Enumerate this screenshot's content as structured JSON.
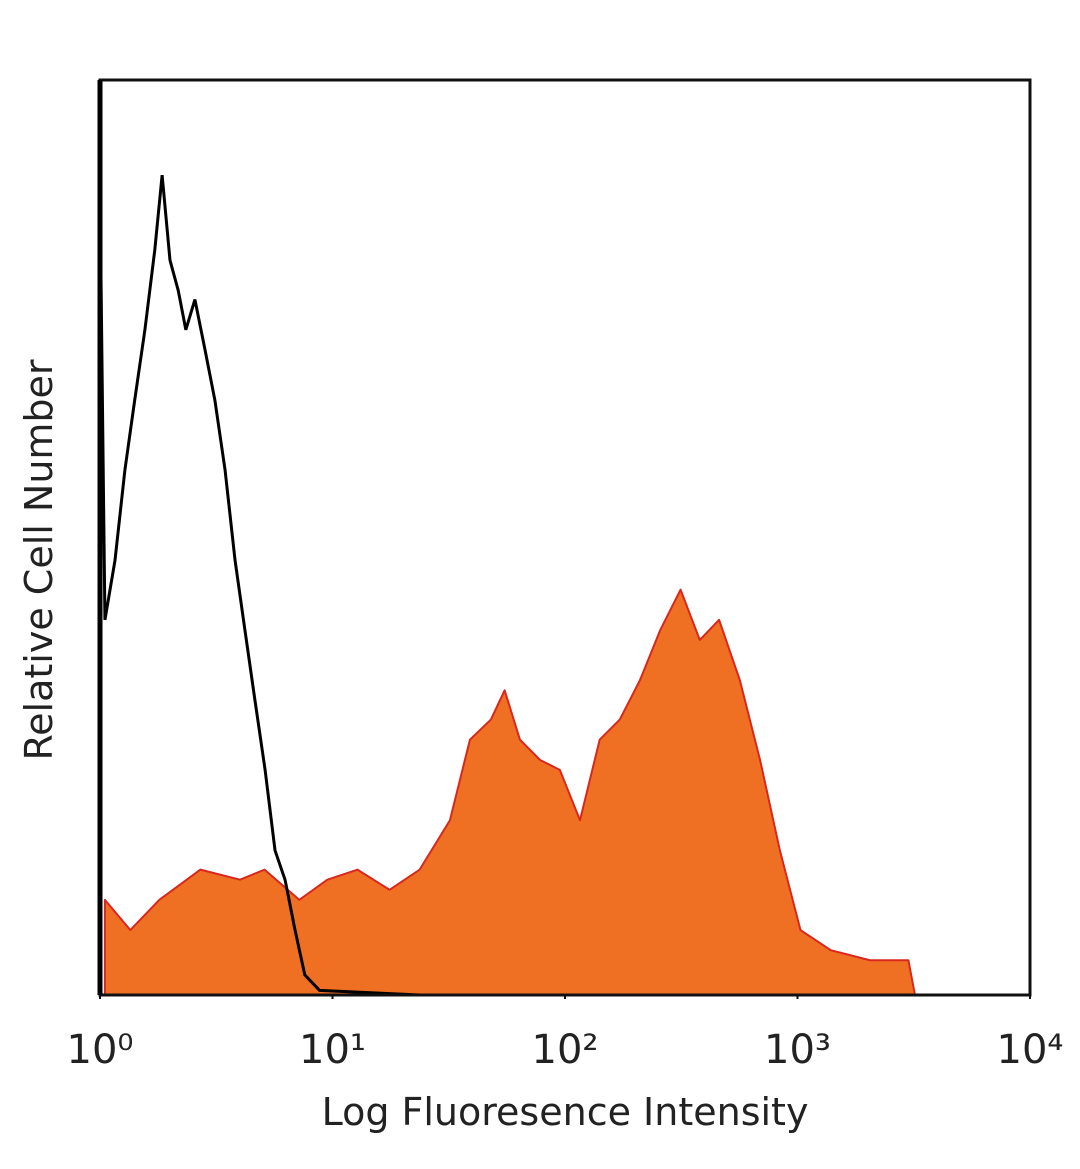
{
  "chart_data": {
    "type": "histogram-overlay",
    "xlabel": "Log Fluoresence Intensity",
    "ylabel": "Relative Cell Number",
    "xscale": "log",
    "xlim": [
      1,
      10000
    ],
    "xticks": [
      {
        "value": 1,
        "label": "10⁰"
      },
      {
        "value": 10,
        "label": "10¹"
      },
      {
        "value": 100,
        "label": "10²"
      },
      {
        "value": 1000,
        "label": "10³"
      },
      {
        "value": 10000,
        "label": "10⁴"
      }
    ],
    "ylim": [
      0,
      100
    ],
    "series": [
      {
        "style": "area",
        "color": "#f07023",
        "edge_color": "#d8281e",
        "x": [
          1.05,
          1.35,
          1.8,
          2.7,
          4,
          5.1,
          7.2,
          9.5,
          12.8,
          17.6,
          23.7,
          32,
          39,
          48,
          55,
          64,
          78,
          95,
          116,
          141,
          172,
          210,
          257,
          314,
          380,
          460,
          565,
          690,
          840,
          1030,
          1390,
          2050,
          3000,
          3200
        ],
        "values": [
          10.4,
          7.1,
          10.4,
          13.7,
          12.6,
          13.7,
          10.4,
          12.6,
          13.7,
          11.5,
          13.7,
          19.1,
          27.9,
          30.1,
          33.3,
          27.9,
          25.7,
          24.6,
          19.1,
          27.9,
          30.1,
          34.4,
          39.9,
          44.3,
          38.8,
          41,
          34.4,
          25.7,
          15.8,
          7.1,
          4.9,
          3.8,
          3.8,
          0
        ]
      },
      {
        "style": "line",
        "color": "#000000",
        "x": [
          1,
          1.05,
          1.16,
          1.28,
          1.41,
          1.56,
          1.72,
          1.85,
          2.0,
          2.17,
          2.34,
          2.56,
          2.83,
          3.12,
          3.45,
          3.81,
          4.2,
          4.64,
          5.13,
          5.66,
          6.25,
          6.9,
          7.6,
          8.8,
          23.8
        ],
        "values": [
          88,
          41,
          47.5,
          57.4,
          65,
          72.7,
          81.4,
          89.6,
          80.3,
          77,
          72.7,
          76,
          70.5,
          65,
          57.4,
          47.5,
          39.9,
          32.2,
          24.6,
          15.8,
          12.6,
          7.1,
          2.2,
          0.5,
          0
        ]
      }
    ]
  }
}
